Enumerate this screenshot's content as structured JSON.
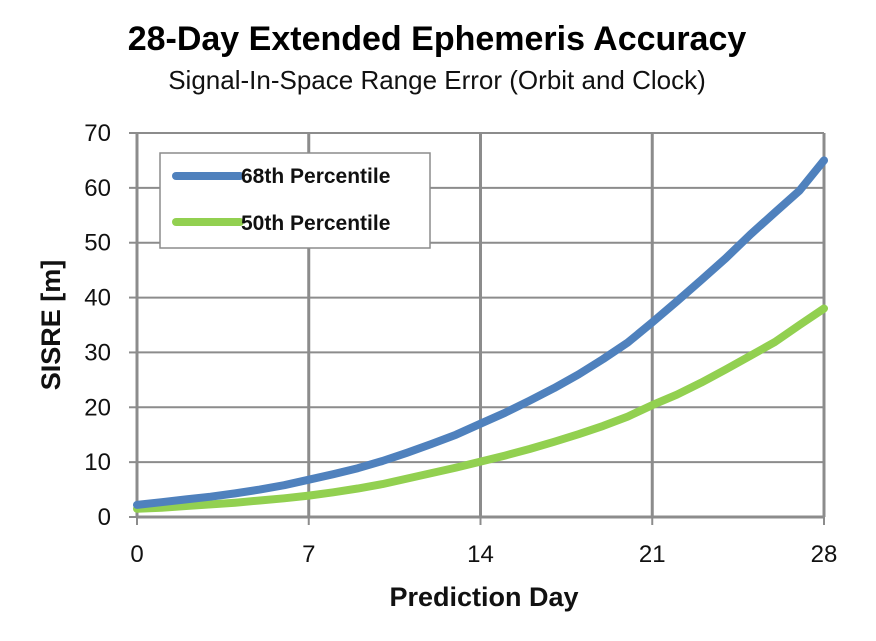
{
  "chart_data": {
    "type": "line",
    "title": "28-Day Extended Ephemeris Accuracy",
    "subtitle": "Signal-In-Space Range Error (Orbit and Clock)",
    "xlabel": "Prediction Day",
    "ylabel": "SISRE [m]",
    "xlim": [
      0,
      28
    ],
    "ylim": [
      0,
      70
    ],
    "xticks": [
      0,
      7,
      14,
      21,
      28
    ],
    "yticks": [
      0,
      10,
      20,
      30,
      40,
      50,
      60,
      70
    ],
    "grid": true,
    "legend_position": "top-left",
    "series": [
      {
        "name": "68th Percentile",
        "color": "#4f81bd",
        "x": [
          0,
          1,
          2,
          3,
          4,
          5,
          6,
          7,
          8,
          9,
          10,
          11,
          12,
          13,
          14,
          15,
          16,
          17,
          18,
          19,
          20,
          21,
          22,
          23,
          24,
          25,
          26,
          27,
          28
        ],
        "y": [
          2.2,
          2.7,
          3.2,
          3.7,
          4.3,
          5.0,
          5.8,
          6.8,
          7.8,
          8.9,
          10.2,
          11.7,
          13.3,
          15.0,
          17.0,
          19.0,
          21.2,
          23.5,
          26.0,
          28.8,
          31.8,
          35.5,
          39.3,
          43.2,
          47.2,
          51.5,
          55.5,
          59.5,
          65.0
        ]
      },
      {
        "name": "50th Percentile",
        "color": "#92d050",
        "x": [
          0,
          1,
          2,
          3,
          4,
          5,
          6,
          7,
          8,
          9,
          10,
          11,
          12,
          13,
          14,
          15,
          16,
          17,
          18,
          19,
          20,
          21,
          22,
          23,
          24,
          25,
          26,
          27,
          28
        ],
        "y": [
          1.5,
          1.7,
          2.0,
          2.3,
          2.6,
          3.0,
          3.4,
          3.9,
          4.5,
          5.2,
          6.0,
          7.0,
          8.0,
          9.0,
          10.1,
          11.2,
          12.4,
          13.7,
          15.1,
          16.6,
          18.3,
          20.4,
          22.3,
          24.5,
          26.9,
          29.4,
          31.9,
          35.0,
          38.0
        ]
      }
    ]
  }
}
